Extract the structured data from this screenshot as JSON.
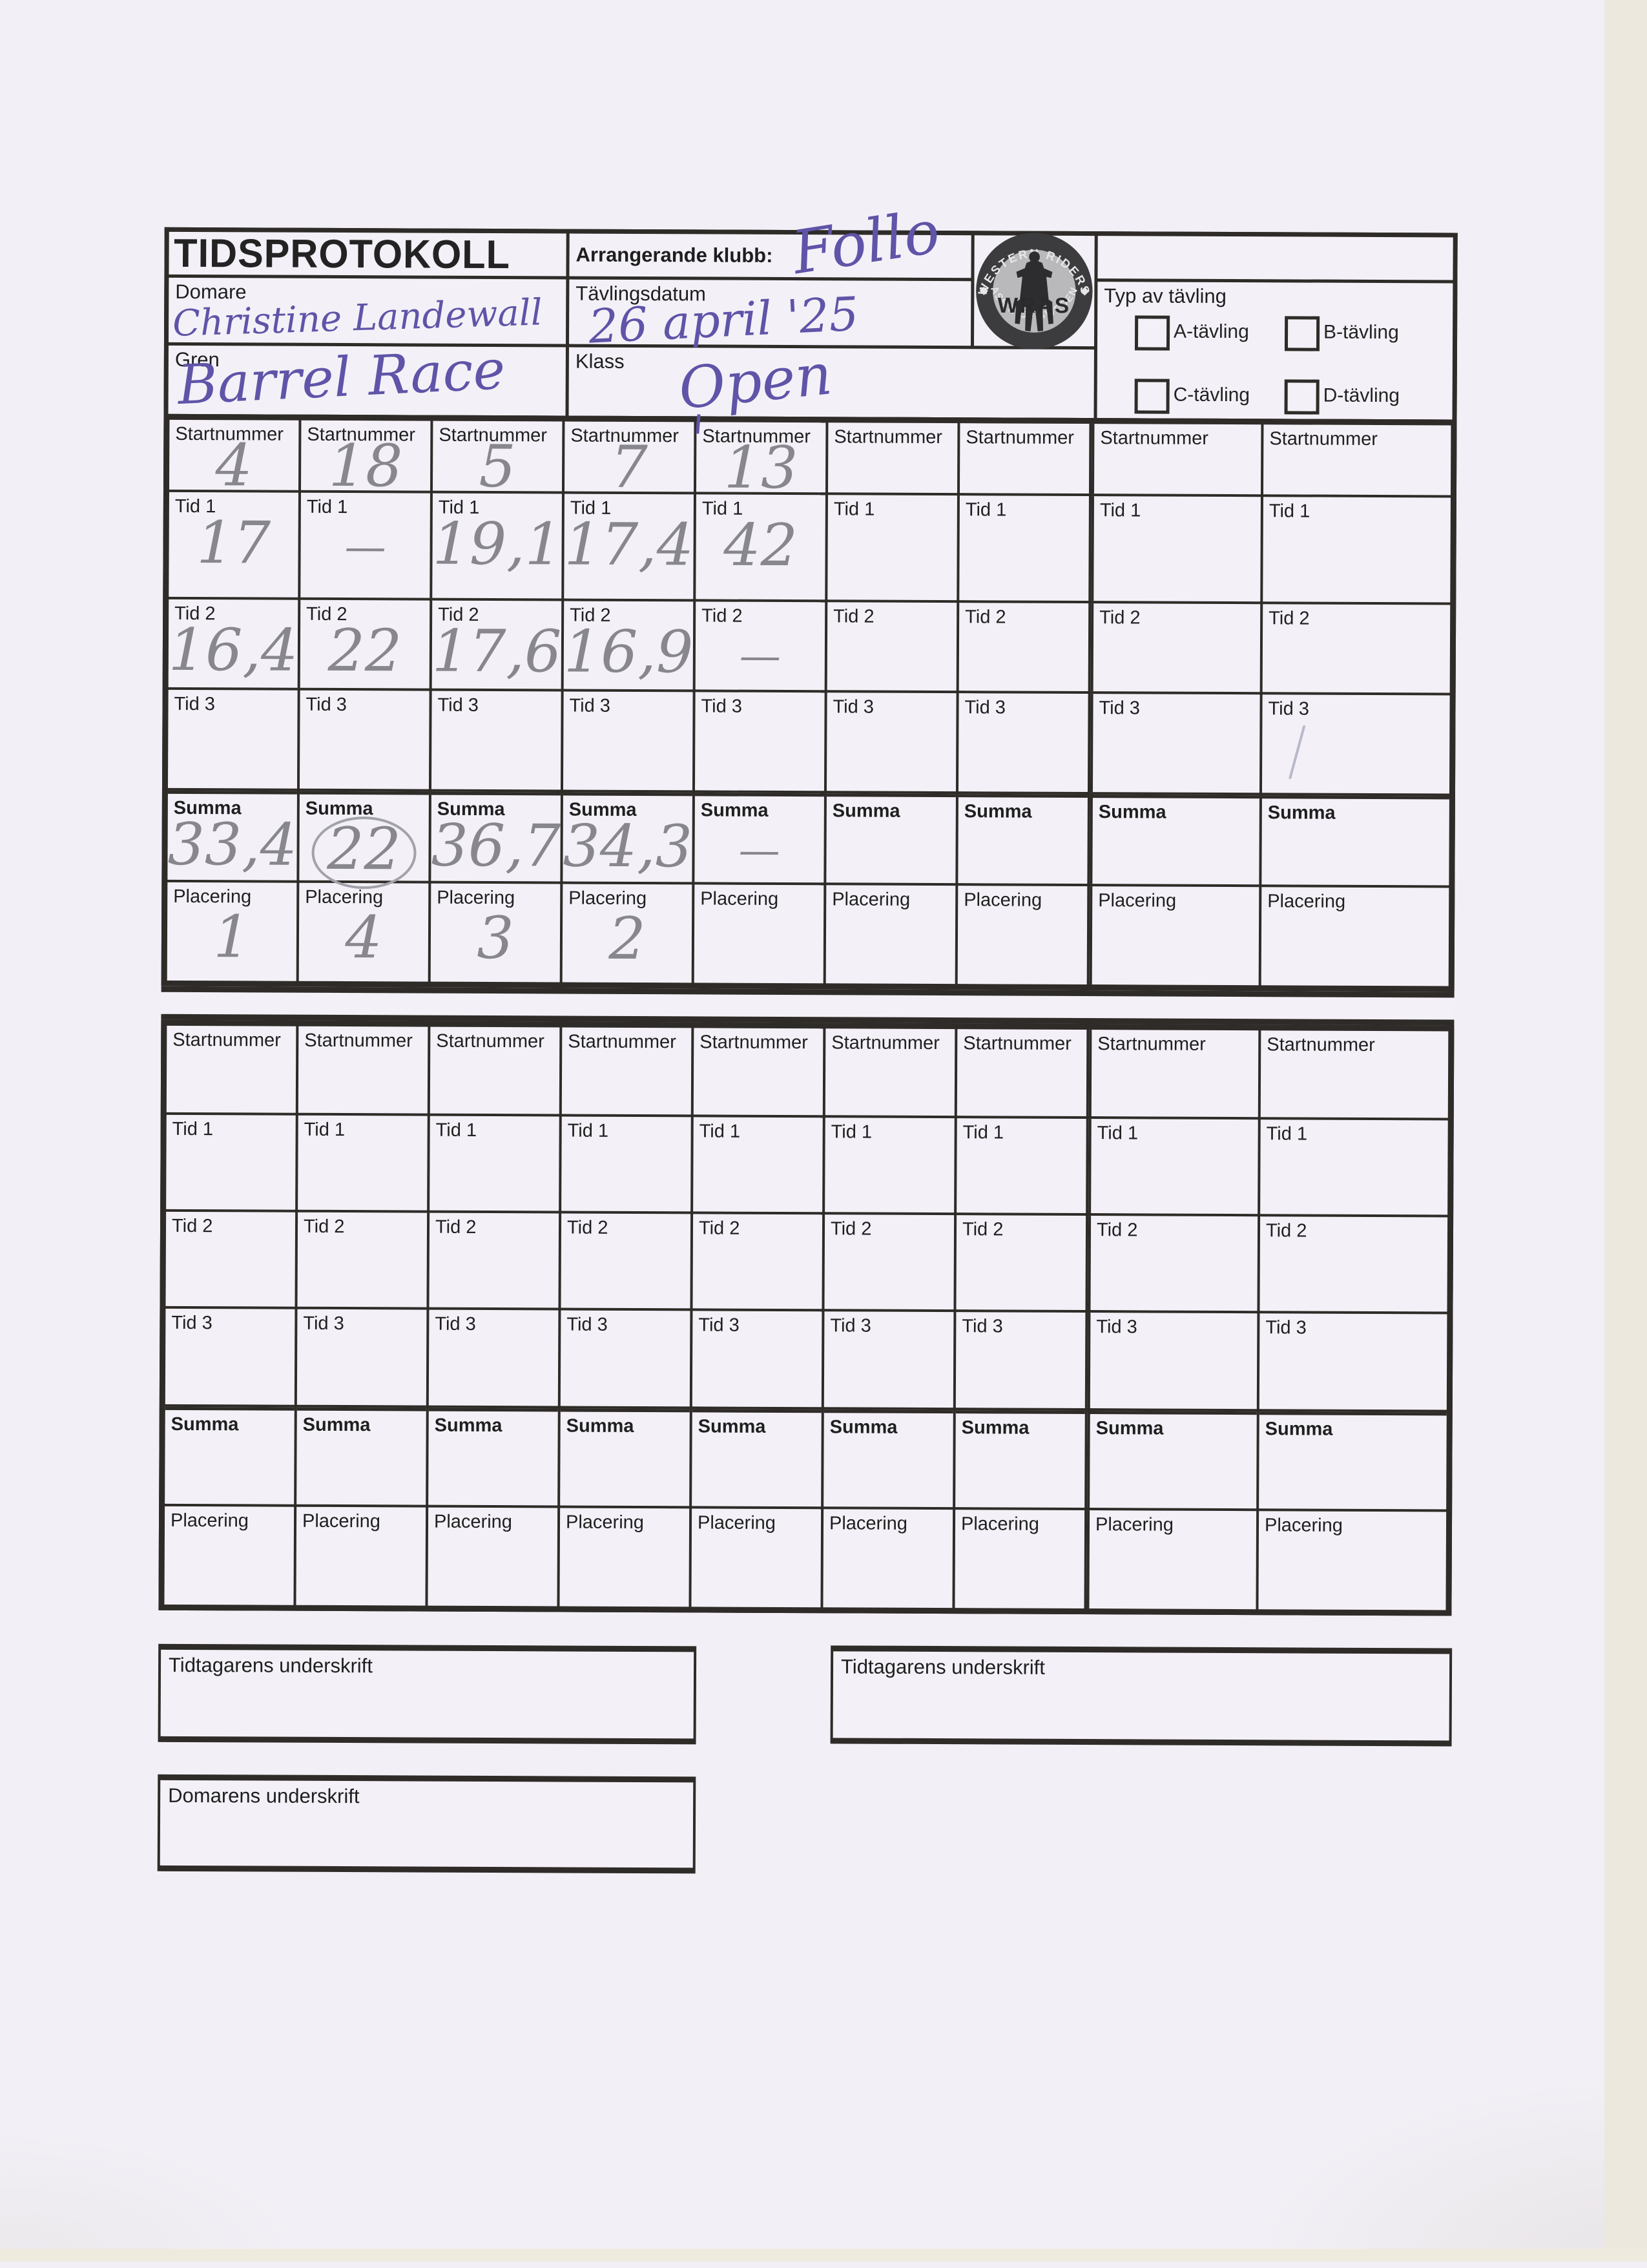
{
  "document": {
    "kind": "scanned competition time protocol form"
  },
  "header": {
    "title": "TIDSPROTOKOLL",
    "club": {
      "label": "Arrangerande klubb:",
      "value": "Follo"
    },
    "judge": {
      "label": "Domare",
      "value": "Christine Landewall"
    },
    "date": {
      "label": "Tävlingsdatum",
      "value": "26 april '25"
    },
    "event": {
      "label": "Gren",
      "value": "Barrel Race"
    },
    "klass": {
      "label": "Klass",
      "value": "Open"
    },
    "type": {
      "label": "Typ av tävling",
      "options": [
        {
          "label": "A-tävling",
          "checked": false
        },
        {
          "label": "B-tävling",
          "checked": false
        },
        {
          "label": "C-tävling",
          "checked": false
        },
        {
          "label": "D-tävling",
          "checked": false
        }
      ]
    }
  },
  "logo": {
    "top": "WESTERN RIDERS",
    "bottom": "ASS'N OF SWEDEN",
    "center": "WRAS"
  },
  "row_labels": {
    "start": "Startnummer",
    "tid1": "Tid 1",
    "tid2": "Tid 2",
    "tid3": "Tid 3",
    "summa": "Summa",
    "placering": "Placering"
  },
  "table1": {
    "cols": [
      {
        "start": "4",
        "tid1": "17",
        "tid2": "16,4",
        "tid3": "",
        "summa": "33,4",
        "placering": "1"
      },
      {
        "start": "18",
        "tid1": "—",
        "tid2": "22",
        "tid3": "",
        "summa": "22",
        "placering": "4",
        "summa_circled": true
      },
      {
        "start": "5",
        "tid1": "19,1",
        "tid2": "17,6",
        "tid3": "",
        "summa": "36,7",
        "placering": "3"
      },
      {
        "start": "7",
        "tid1": "17,4",
        "tid2": "16,9",
        "tid3": "",
        "summa": "34,3",
        "placering": "2"
      },
      {
        "start": "13",
        "tid1": "42",
        "tid2": "—",
        "tid3": "",
        "summa": "—",
        "placering": ""
      },
      {
        "start": "",
        "tid1": "",
        "tid2": "",
        "tid3": "",
        "summa": "",
        "placering": ""
      },
      {
        "start": "",
        "tid1": "",
        "tid2": "",
        "tid3": "",
        "summa": "",
        "placering": ""
      },
      {
        "start": "",
        "tid1": "",
        "tid2": "",
        "tid3": "",
        "summa": "",
        "placering": ""
      },
      {
        "start": "",
        "tid1": "",
        "tid2": "",
        "tid3": "",
        "summa": "",
        "placering": "",
        "tid3_slash": true
      }
    ]
  },
  "table2": {
    "cols": [
      {
        "start": "",
        "tid1": "",
        "tid2": "",
        "tid3": "",
        "summa": "",
        "placering": ""
      },
      {
        "start": "",
        "tid1": "",
        "tid2": "",
        "tid3": "",
        "summa": "",
        "placering": ""
      },
      {
        "start": "",
        "tid1": "",
        "tid2": "",
        "tid3": "",
        "summa": "",
        "placering": ""
      },
      {
        "start": "",
        "tid1": "",
        "tid2": "",
        "tid3": "",
        "summa": "",
        "placering": ""
      },
      {
        "start": "",
        "tid1": "",
        "tid2": "",
        "tid3": "",
        "summa": "",
        "placering": ""
      },
      {
        "start": "",
        "tid1": "",
        "tid2": "",
        "tid3": "",
        "summa": "",
        "placering": ""
      },
      {
        "start": "",
        "tid1": "",
        "tid2": "",
        "tid3": "",
        "summa": "",
        "placering": ""
      },
      {
        "start": "",
        "tid1": "",
        "tid2": "",
        "tid3": "",
        "summa": "",
        "placering": ""
      },
      {
        "start": "",
        "tid1": "",
        "tid2": "",
        "tid3": "",
        "summa": "",
        "placering": ""
      }
    ]
  },
  "signatures": {
    "timer1": "Tidtagarens underskrift",
    "timer2": "Tidtagarens underskrift",
    "judge": "Domarens underskrift"
  },
  "colors": {
    "paper": "#f2f0f6",
    "line": "#2f2b28",
    "ink": "#5f54a8",
    "pencil": "#87878d"
  }
}
